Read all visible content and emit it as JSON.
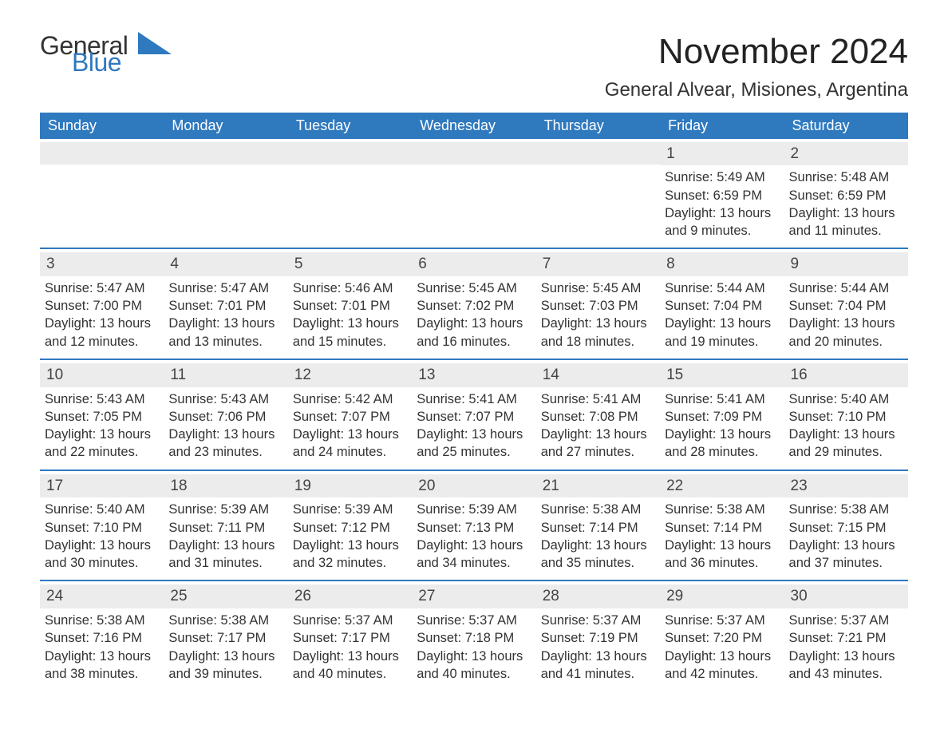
{
  "logo": {
    "text1": "General",
    "text2": "Blue"
  },
  "title": "November 2024",
  "subtitle": "General Alvear, Misiones, Argentina",
  "colors": {
    "header_bg": "#2f79bf",
    "header_text": "#ffffff",
    "daynum_bg": "#ececec",
    "border": "#2f79bf",
    "body_text": "#333333",
    "logo_blue": "#2f79bf"
  },
  "day_headers": [
    "Sunday",
    "Monday",
    "Tuesday",
    "Wednesday",
    "Thursday",
    "Friday",
    "Saturday"
  ],
  "weeks": [
    [
      null,
      null,
      null,
      null,
      null,
      {
        "n": "1",
        "sunrise": "Sunrise: 5:49 AM",
        "sunset": "Sunset: 6:59 PM",
        "day1": "Daylight: 13 hours",
        "day2": "and 9 minutes."
      },
      {
        "n": "2",
        "sunrise": "Sunrise: 5:48 AM",
        "sunset": "Sunset: 6:59 PM",
        "day1": "Daylight: 13 hours",
        "day2": "and 11 minutes."
      }
    ],
    [
      {
        "n": "3",
        "sunrise": "Sunrise: 5:47 AM",
        "sunset": "Sunset: 7:00 PM",
        "day1": "Daylight: 13 hours",
        "day2": "and 12 minutes."
      },
      {
        "n": "4",
        "sunrise": "Sunrise: 5:47 AM",
        "sunset": "Sunset: 7:01 PM",
        "day1": "Daylight: 13 hours",
        "day2": "and 13 minutes."
      },
      {
        "n": "5",
        "sunrise": "Sunrise: 5:46 AM",
        "sunset": "Sunset: 7:01 PM",
        "day1": "Daylight: 13 hours",
        "day2": "and 15 minutes."
      },
      {
        "n": "6",
        "sunrise": "Sunrise: 5:45 AM",
        "sunset": "Sunset: 7:02 PM",
        "day1": "Daylight: 13 hours",
        "day2": "and 16 minutes."
      },
      {
        "n": "7",
        "sunrise": "Sunrise: 5:45 AM",
        "sunset": "Sunset: 7:03 PM",
        "day1": "Daylight: 13 hours",
        "day2": "and 18 minutes."
      },
      {
        "n": "8",
        "sunrise": "Sunrise: 5:44 AM",
        "sunset": "Sunset: 7:04 PM",
        "day1": "Daylight: 13 hours",
        "day2": "and 19 minutes."
      },
      {
        "n": "9",
        "sunrise": "Sunrise: 5:44 AM",
        "sunset": "Sunset: 7:04 PM",
        "day1": "Daylight: 13 hours",
        "day2": "and 20 minutes."
      }
    ],
    [
      {
        "n": "10",
        "sunrise": "Sunrise: 5:43 AM",
        "sunset": "Sunset: 7:05 PM",
        "day1": "Daylight: 13 hours",
        "day2": "and 22 minutes."
      },
      {
        "n": "11",
        "sunrise": "Sunrise: 5:43 AM",
        "sunset": "Sunset: 7:06 PM",
        "day1": "Daylight: 13 hours",
        "day2": "and 23 minutes."
      },
      {
        "n": "12",
        "sunrise": "Sunrise: 5:42 AM",
        "sunset": "Sunset: 7:07 PM",
        "day1": "Daylight: 13 hours",
        "day2": "and 24 minutes."
      },
      {
        "n": "13",
        "sunrise": "Sunrise: 5:41 AM",
        "sunset": "Sunset: 7:07 PM",
        "day1": "Daylight: 13 hours",
        "day2": "and 25 minutes."
      },
      {
        "n": "14",
        "sunrise": "Sunrise: 5:41 AM",
        "sunset": "Sunset: 7:08 PM",
        "day1": "Daylight: 13 hours",
        "day2": "and 27 minutes."
      },
      {
        "n": "15",
        "sunrise": "Sunrise: 5:41 AM",
        "sunset": "Sunset: 7:09 PM",
        "day1": "Daylight: 13 hours",
        "day2": "and 28 minutes."
      },
      {
        "n": "16",
        "sunrise": "Sunrise: 5:40 AM",
        "sunset": "Sunset: 7:10 PM",
        "day1": "Daylight: 13 hours",
        "day2": "and 29 minutes."
      }
    ],
    [
      {
        "n": "17",
        "sunrise": "Sunrise: 5:40 AM",
        "sunset": "Sunset: 7:10 PM",
        "day1": "Daylight: 13 hours",
        "day2": "and 30 minutes."
      },
      {
        "n": "18",
        "sunrise": "Sunrise: 5:39 AM",
        "sunset": "Sunset: 7:11 PM",
        "day1": "Daylight: 13 hours",
        "day2": "and 31 minutes."
      },
      {
        "n": "19",
        "sunrise": "Sunrise: 5:39 AM",
        "sunset": "Sunset: 7:12 PM",
        "day1": "Daylight: 13 hours",
        "day2": "and 32 minutes."
      },
      {
        "n": "20",
        "sunrise": "Sunrise: 5:39 AM",
        "sunset": "Sunset: 7:13 PM",
        "day1": "Daylight: 13 hours",
        "day2": "and 34 minutes."
      },
      {
        "n": "21",
        "sunrise": "Sunrise: 5:38 AM",
        "sunset": "Sunset: 7:14 PM",
        "day1": "Daylight: 13 hours",
        "day2": "and 35 minutes."
      },
      {
        "n": "22",
        "sunrise": "Sunrise: 5:38 AM",
        "sunset": "Sunset: 7:14 PM",
        "day1": "Daylight: 13 hours",
        "day2": "and 36 minutes."
      },
      {
        "n": "23",
        "sunrise": "Sunrise: 5:38 AM",
        "sunset": "Sunset: 7:15 PM",
        "day1": "Daylight: 13 hours",
        "day2": "and 37 minutes."
      }
    ],
    [
      {
        "n": "24",
        "sunrise": "Sunrise: 5:38 AM",
        "sunset": "Sunset: 7:16 PM",
        "day1": "Daylight: 13 hours",
        "day2": "and 38 minutes."
      },
      {
        "n": "25",
        "sunrise": "Sunrise: 5:38 AM",
        "sunset": "Sunset: 7:17 PM",
        "day1": "Daylight: 13 hours",
        "day2": "and 39 minutes."
      },
      {
        "n": "26",
        "sunrise": "Sunrise: 5:37 AM",
        "sunset": "Sunset: 7:17 PM",
        "day1": "Daylight: 13 hours",
        "day2": "and 40 minutes."
      },
      {
        "n": "27",
        "sunrise": "Sunrise: 5:37 AM",
        "sunset": "Sunset: 7:18 PM",
        "day1": "Daylight: 13 hours",
        "day2": "and 40 minutes."
      },
      {
        "n": "28",
        "sunrise": "Sunrise: 5:37 AM",
        "sunset": "Sunset: 7:19 PM",
        "day1": "Daylight: 13 hours",
        "day2": "and 41 minutes."
      },
      {
        "n": "29",
        "sunrise": "Sunrise: 5:37 AM",
        "sunset": "Sunset: 7:20 PM",
        "day1": "Daylight: 13 hours",
        "day2": "and 42 minutes."
      },
      {
        "n": "30",
        "sunrise": "Sunrise: 5:37 AM",
        "sunset": "Sunset: 7:21 PM",
        "day1": "Daylight: 13 hours",
        "day2": "and 43 minutes."
      }
    ]
  ]
}
